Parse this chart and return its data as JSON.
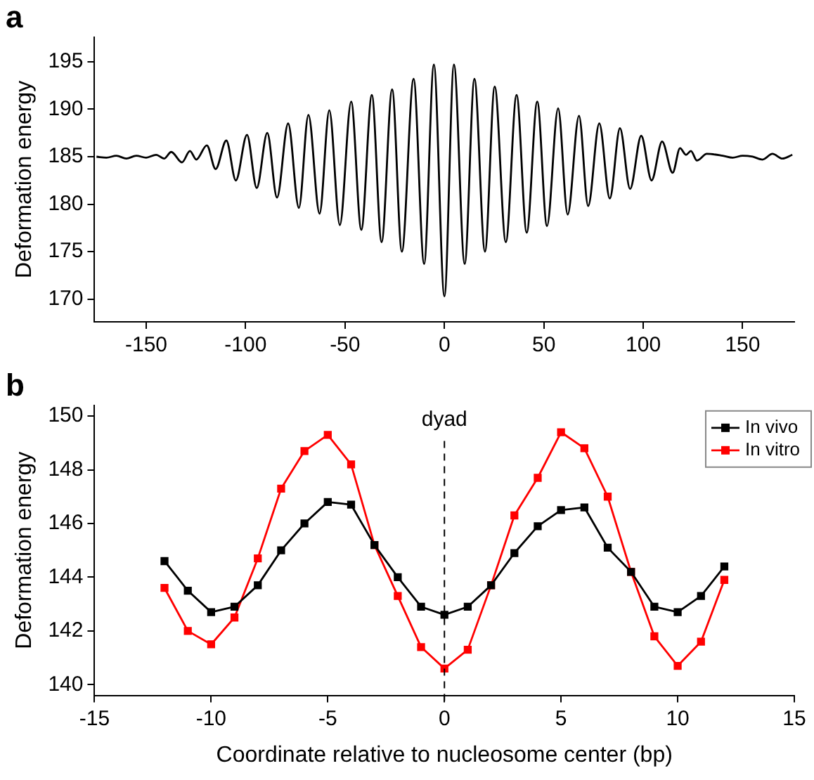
{
  "chart_data": [
    {
      "type": "line",
      "title": "a",
      "ylabel": "Deformation energy",
      "xlim": [
        -176,
        176
      ],
      "ylim": [
        167.6,
        197.6
      ],
      "xticks": [
        -150,
        -100,
        -50,
        0,
        50,
        100,
        150
      ],
      "yticks": [
        170,
        175,
        180,
        185,
        190,
        195
      ],
      "grid": false,
      "legend": false,
      "marker": "none",
      "line_style": "solid",
      "series": [
        {
          "color": "#000000",
          "x": [
            -175,
            -170,
            -165,
            -160,
            -155,
            -150,
            -145,
            -141,
            -137.4,
            -132,
            -128,
            -124.8,
            -119.5,
            -115.1,
            -109.7,
            -104.9,
            -99.3,
            -94.4,
            -89.1,
            -84.2,
            -78.6,
            -73.2,
            -68.4,
            -62.8,
            -57.9,
            -52.6,
            -46.9,
            -41.8,
            -36.5,
            -31.6,
            -26.3,
            -21.4,
            -15.5,
            -10.2,
            -5.3,
            0,
            4.8,
            10.2,
            15.1,
            20.4,
            25.3,
            30.9,
            36.3,
            41.4,
            46.7,
            51.6,
            57.2,
            62,
            67.7,
            72.3,
            77.9,
            83.2,
            88.3,
            93.4,
            99,
            104.2,
            109.5,
            114.8,
            118.5,
            121.5,
            124,
            127,
            132,
            140,
            145,
            150,
            155,
            160,
            165,
            170,
            175
          ],
          "values": [
            185,
            184.9,
            185.1,
            184.8,
            185.1,
            184.9,
            185.2,
            184.8,
            185.5,
            184.4,
            185.6,
            184.7,
            186.2,
            183.7,
            186.7,
            182.5,
            187.3,
            181.7,
            187.5,
            180.7,
            188.5,
            179.6,
            189.4,
            179,
            189.9,
            177.8,
            190.8,
            177.3,
            191.5,
            176,
            192.1,
            175,
            193.2,
            173.7,
            194.7,
            170.3,
            194.7,
            173.7,
            193.2,
            175,
            192.4,
            176,
            191.5,
            177,
            190.8,
            177.7,
            190.1,
            178.9,
            189.3,
            179.8,
            188.5,
            180.6,
            188,
            181.6,
            187.2,
            182.5,
            186.6,
            183.3,
            185.9,
            185.2,
            185.6,
            184.6,
            185.3,
            185.1,
            184.9,
            185.1,
            185,
            184.7,
            185.3,
            184.8,
            185.2
          ]
        }
      ]
    },
    {
      "type": "line",
      "title": "b",
      "xlabel": "Coordinate relative to nucleosome center (bp)",
      "ylabel": "Deformation energy",
      "xlim": [
        -15,
        15
      ],
      "ylim": [
        139.6,
        150.4
      ],
      "xticks": [
        -15,
        -10,
        -5,
        0,
        5,
        10,
        15
      ],
      "yticks": [
        140,
        142,
        144,
        146,
        148,
        150
      ],
      "grid": false,
      "legend": "top right",
      "marker": "square",
      "line_style": "solid",
      "x": [
        -12,
        -11,
        -10,
        -9,
        -8,
        -7,
        -6,
        -5,
        -4,
        -3,
        -2,
        -1,
        0,
        1,
        2,
        3,
        4,
        5,
        6,
        7,
        8,
        9,
        10,
        11,
        12
      ],
      "ref_lines": [
        {
          "axis": "x",
          "value": 0,
          "label": "dyad",
          "line_style": "dashed",
          "color": "#000000"
        }
      ],
      "series": [
        {
          "name": "In vivo",
          "color": "#000000",
          "values": [
            144.6,
            143.5,
            142.7,
            142.9,
            143.7,
            145,
            146,
            146.8,
            146.7,
            145.2,
            144,
            142.9,
            142.6,
            142.9,
            143.7,
            144.9,
            145.9,
            146.5,
            146.6,
            145.1,
            144.2,
            142.9,
            142.7,
            143.3,
            144.4
          ]
        },
        {
          "name": "In vitro",
          "color": "#ff0000",
          "values": [
            143.6,
            142,
            141.5,
            142.5,
            144.7,
            147.3,
            148.7,
            149.3,
            148.2,
            145.2,
            143.3,
            141.4,
            140.6,
            141.3,
            143.7,
            146.3,
            147.7,
            149.4,
            148.8,
            147,
            144.2,
            141.8,
            140.7,
            141.6,
            143.9
          ]
        }
      ]
    }
  ]
}
